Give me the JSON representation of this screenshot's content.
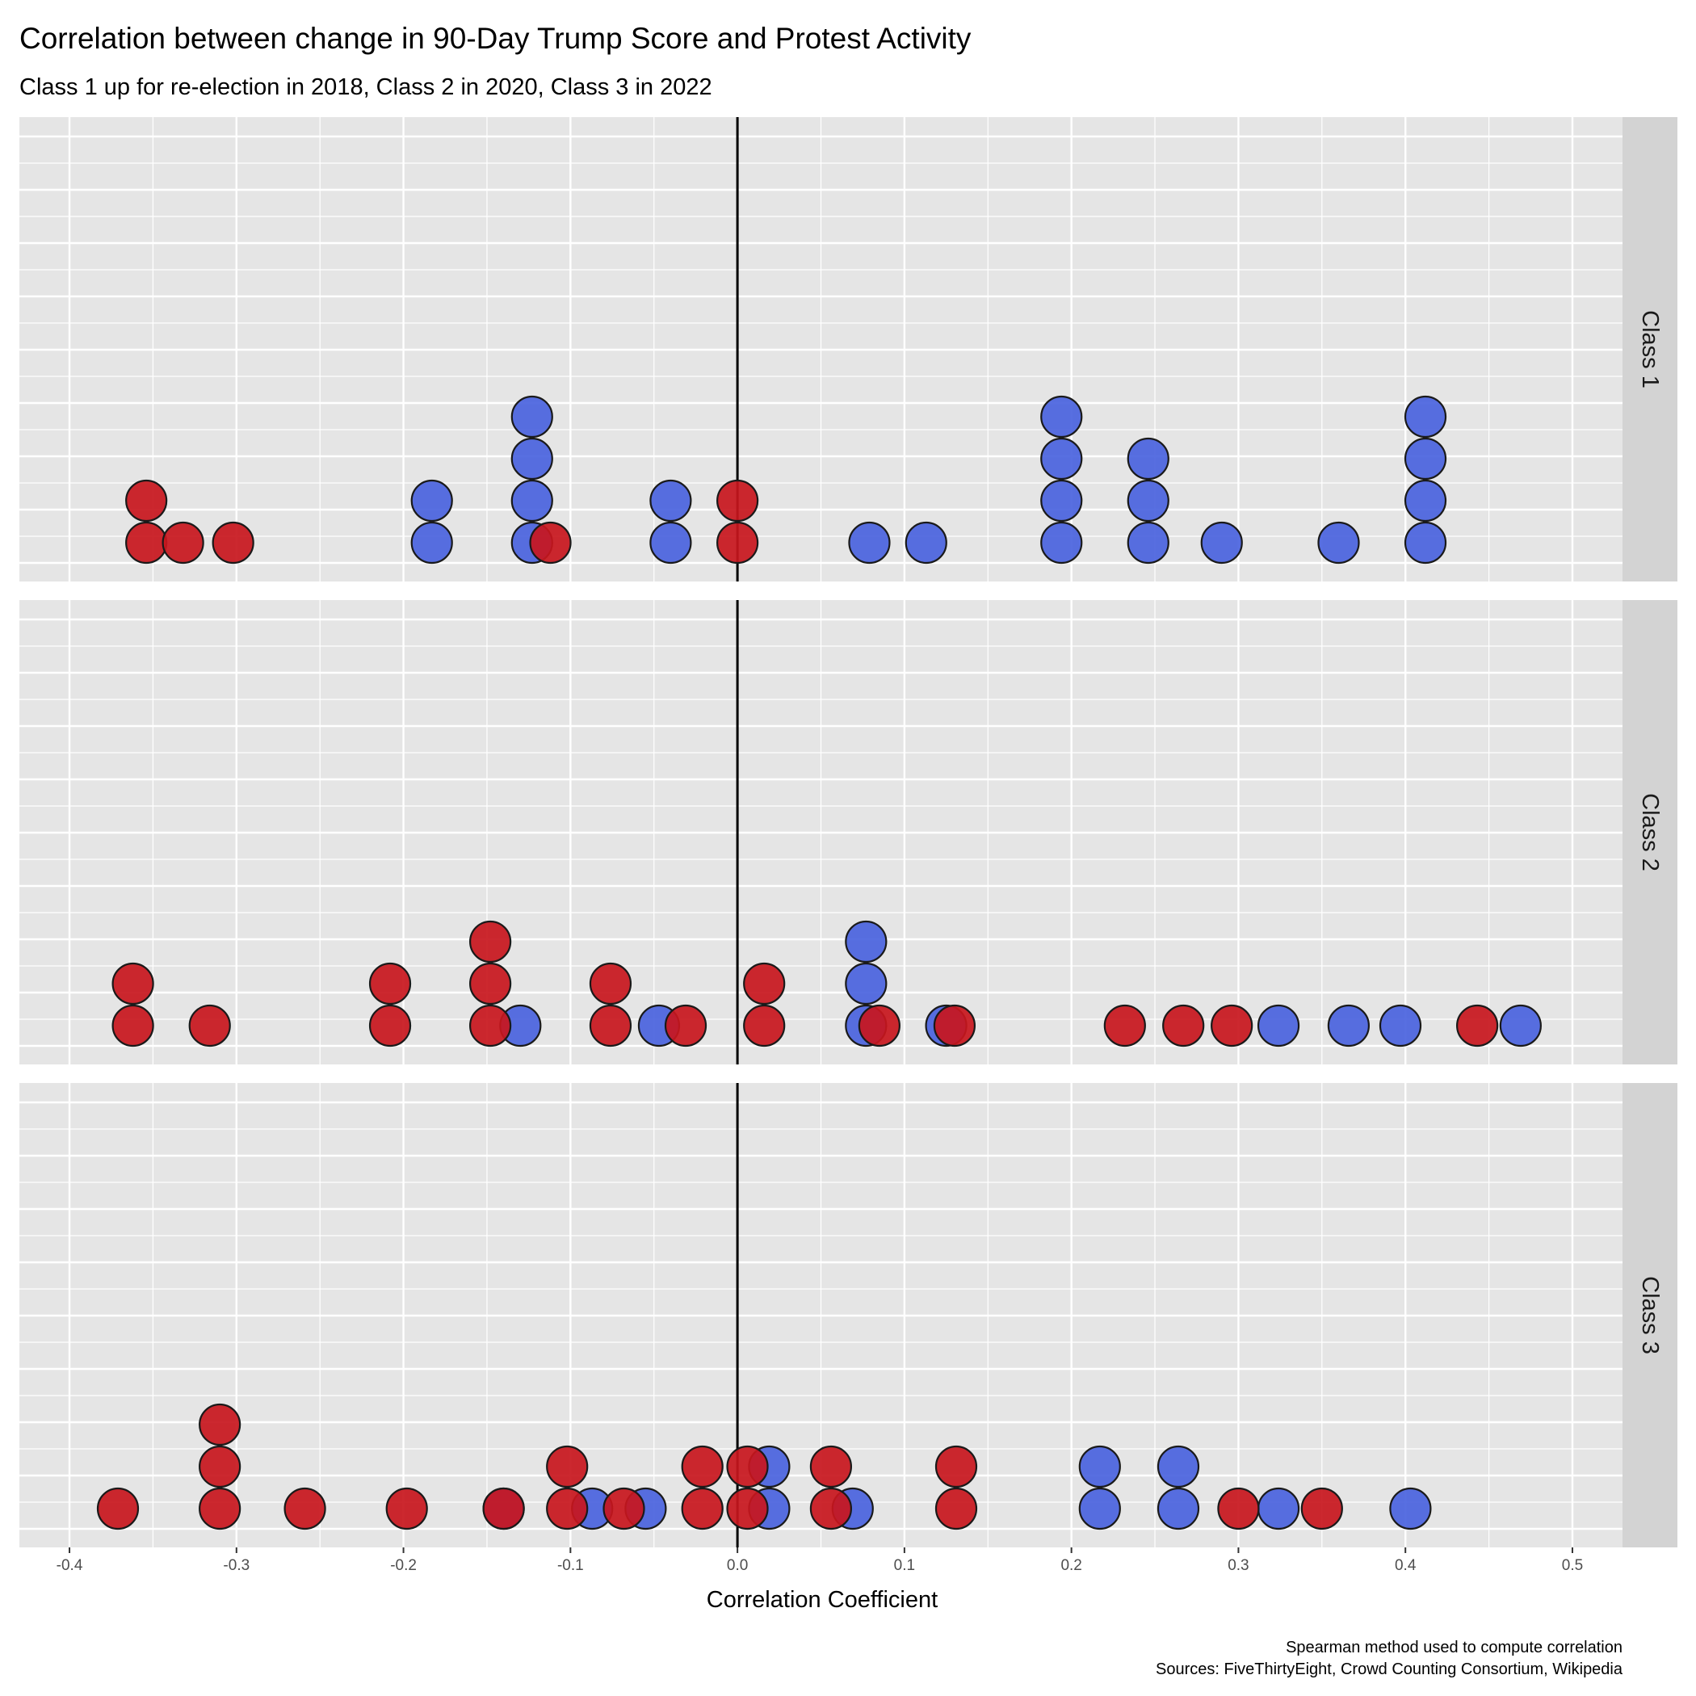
{
  "title": "Correlation between change in 90-Day Trump Score and Protest Activity",
  "subtitle": "Class 1 up for re-election in 2018, Class 2 in 2020, Class 3 in 2022",
  "caption": [
    "Spearman method used to compute correlation",
    "Sources: FiveThirtyEight, Crowd Counting Consortium, Wikipedia"
  ],
  "colors": {
    "panel_bg": "#e5e5e5",
    "grid": "#ffffff",
    "strip_bg": "#d3d3d3",
    "blue": "#4a63de",
    "red": "#c8161d",
    "zero_line": "#000000"
  },
  "chart_data": {
    "type": "scatter",
    "subtype": "dotplot",
    "xlabel": "Correlation Coefficient",
    "xlim": [
      -0.43,
      0.53
    ],
    "x_ticks": [
      -0.4,
      -0.3,
      -0.2,
      -0.1,
      0.0,
      0.1,
      0.2,
      0.3,
      0.4,
      0.5
    ],
    "x_tick_labels": [
      "-0.4",
      "-0.3",
      "-0.2",
      "-0.1",
      "0.0",
      "0.1",
      "0.2",
      "0.3",
      "0.4",
      "0.5"
    ],
    "vline": 0,
    "grid": true,
    "facets": [
      {
        "label": "Class 1",
        "points": [
          {
            "x": -0.354,
            "stack": 0,
            "color": "red"
          },
          {
            "x": -0.354,
            "stack": 1,
            "color": "red"
          },
          {
            "x": -0.332,
            "stack": 0,
            "color": "red"
          },
          {
            "x": -0.302,
            "stack": 0,
            "color": "red"
          },
          {
            "x": -0.183,
            "stack": 0,
            "color": "blue"
          },
          {
            "x": -0.183,
            "stack": 1,
            "color": "blue"
          },
          {
            "x": -0.123,
            "stack": 0,
            "color": "blue"
          },
          {
            "x": -0.123,
            "stack": 1,
            "color": "blue"
          },
          {
            "x": -0.123,
            "stack": 2,
            "color": "blue"
          },
          {
            "x": -0.123,
            "stack": 3,
            "color": "blue"
          },
          {
            "x": -0.112,
            "stack": 0,
            "color": "red"
          },
          {
            "x": -0.04,
            "stack": 0,
            "color": "blue"
          },
          {
            "x": -0.04,
            "stack": 1,
            "color": "blue"
          },
          {
            "x": 0.0,
            "stack": 0,
            "color": "red"
          },
          {
            "x": 0.0,
            "stack": 1,
            "color": "red"
          },
          {
            "x": 0.079,
            "stack": 0,
            "color": "blue"
          },
          {
            "x": 0.113,
            "stack": 0,
            "color": "blue"
          },
          {
            "x": 0.194,
            "stack": 0,
            "color": "blue"
          },
          {
            "x": 0.194,
            "stack": 1,
            "color": "blue"
          },
          {
            "x": 0.194,
            "stack": 2,
            "color": "blue"
          },
          {
            "x": 0.194,
            "stack": 3,
            "color": "blue"
          },
          {
            "x": 0.246,
            "stack": 0,
            "color": "blue"
          },
          {
            "x": 0.246,
            "stack": 1,
            "color": "blue"
          },
          {
            "x": 0.246,
            "stack": 2,
            "color": "blue"
          },
          {
            "x": 0.29,
            "stack": 0,
            "color": "blue"
          },
          {
            "x": 0.36,
            "stack": 0,
            "color": "blue"
          },
          {
            "x": 0.412,
            "stack": 0,
            "color": "blue"
          },
          {
            "x": 0.412,
            "stack": 1,
            "color": "blue"
          },
          {
            "x": 0.412,
            "stack": 2,
            "color": "blue"
          },
          {
            "x": 0.412,
            "stack": 3,
            "color": "blue"
          }
        ]
      },
      {
        "label": "Class 2",
        "points": [
          {
            "x": -0.362,
            "stack": 0,
            "color": "red"
          },
          {
            "x": -0.362,
            "stack": 1,
            "color": "red"
          },
          {
            "x": -0.316,
            "stack": 0,
            "color": "red"
          },
          {
            "x": -0.208,
            "stack": 0,
            "color": "red"
          },
          {
            "x": -0.208,
            "stack": 1,
            "color": "red"
          },
          {
            "x": -0.13,
            "stack": 0,
            "color": "blue"
          },
          {
            "x": -0.148,
            "stack": 0,
            "color": "red"
          },
          {
            "x": -0.148,
            "stack": 1,
            "color": "red"
          },
          {
            "x": -0.148,
            "stack": 2,
            "color": "red"
          },
          {
            "x": -0.076,
            "stack": 0,
            "color": "red"
          },
          {
            "x": -0.076,
            "stack": 1,
            "color": "red"
          },
          {
            "x": -0.047,
            "stack": 0,
            "color": "blue"
          },
          {
            "x": -0.031,
            "stack": 0,
            "color": "red"
          },
          {
            "x": 0.016,
            "stack": 0,
            "color": "red"
          },
          {
            "x": 0.016,
            "stack": 1,
            "color": "red"
          },
          {
            "x": 0.077,
            "stack": 0,
            "color": "blue"
          },
          {
            "x": 0.077,
            "stack": 1,
            "color": "blue"
          },
          {
            "x": 0.077,
            "stack": 2,
            "color": "blue"
          },
          {
            "x": 0.085,
            "stack": 0,
            "color": "red"
          },
          {
            "x": 0.125,
            "stack": 0,
            "color": "blue"
          },
          {
            "x": 0.13,
            "stack": 0,
            "color": "red"
          },
          {
            "x": 0.232,
            "stack": 0,
            "color": "red"
          },
          {
            "x": 0.267,
            "stack": 0,
            "color": "red"
          },
          {
            "x": 0.296,
            "stack": 0,
            "color": "red"
          },
          {
            "x": 0.324,
            "stack": 0,
            "color": "blue"
          },
          {
            "x": 0.366,
            "stack": 0,
            "color": "blue"
          },
          {
            "x": 0.397,
            "stack": 0,
            "color": "blue"
          },
          {
            "x": 0.443,
            "stack": 0,
            "color": "red"
          },
          {
            "x": 0.469,
            "stack": 0,
            "color": "blue"
          }
        ]
      },
      {
        "label": "Class 3",
        "points": [
          {
            "x": -0.371,
            "stack": 0,
            "color": "red"
          },
          {
            "x": -0.31,
            "stack": 0,
            "color": "red"
          },
          {
            "x": -0.31,
            "stack": 1,
            "color": "red"
          },
          {
            "x": -0.31,
            "stack": 2,
            "color": "red"
          },
          {
            "x": -0.259,
            "stack": 0,
            "color": "red"
          },
          {
            "x": -0.198,
            "stack": 0,
            "color": "red"
          },
          {
            "x": -0.14,
            "stack": 0,
            "color": "blue"
          },
          {
            "x": -0.14,
            "stack": 0,
            "color": "red"
          },
          {
            "x": -0.087,
            "stack": 0,
            "color": "blue"
          },
          {
            "x": -0.055,
            "stack": 0,
            "color": "blue"
          },
          {
            "x": -0.102,
            "stack": 0,
            "color": "red"
          },
          {
            "x": -0.102,
            "stack": 1,
            "color": "red"
          },
          {
            "x": -0.068,
            "stack": 0,
            "color": "red"
          },
          {
            "x": -0.021,
            "stack": 0,
            "color": "red"
          },
          {
            "x": -0.021,
            "stack": 1,
            "color": "red"
          },
          {
            "x": 0.019,
            "stack": 0,
            "color": "blue"
          },
          {
            "x": 0.019,
            "stack": 1,
            "color": "blue"
          },
          {
            "x": 0.006,
            "stack": 0,
            "color": "red"
          },
          {
            "x": 0.006,
            "stack": 1,
            "color": "red"
          },
          {
            "x": 0.069,
            "stack": 0,
            "color": "blue"
          },
          {
            "x": 0.056,
            "stack": 0,
            "color": "red"
          },
          {
            "x": 0.056,
            "stack": 1,
            "color": "red"
          },
          {
            "x": 0.131,
            "stack": 0,
            "color": "red"
          },
          {
            "x": 0.131,
            "stack": 1,
            "color": "red"
          },
          {
            "x": 0.217,
            "stack": 0,
            "color": "blue"
          },
          {
            "x": 0.217,
            "stack": 1,
            "color": "blue"
          },
          {
            "x": 0.264,
            "stack": 0,
            "color": "blue"
          },
          {
            "x": 0.264,
            "stack": 1,
            "color": "blue"
          },
          {
            "x": 0.3,
            "stack": 0,
            "color": "red"
          },
          {
            "x": 0.324,
            "stack": 0,
            "color": "blue"
          },
          {
            "x": 0.35,
            "stack": 0,
            "color": "red"
          },
          {
            "x": 0.403,
            "stack": 0,
            "color": "blue"
          }
        ]
      }
    ]
  }
}
